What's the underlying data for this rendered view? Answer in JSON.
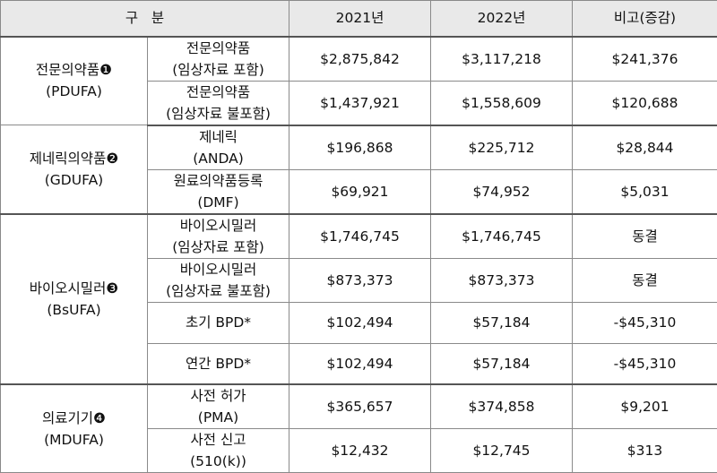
{
  "header": {
    "category": "구   분",
    "year1": "2021년",
    "year2": "2022년",
    "diff": "비고(증감)"
  },
  "groups": [
    {
      "name": "전문의약품❶",
      "abbr": "(PDUFA)",
      "rows": [
        {
          "line1": "전문의약품",
          "line2": "(임상자료 포함)",
          "v2021": "$2,875,842",
          "v2022": "$3,117,218",
          "diff": "$241,376"
        },
        {
          "line1": "전문의약품",
          "line2": "(임상자료 불포함)",
          "v2021": "$1,437,921",
          "v2022": "$1,558,609",
          "diff": "$120,688"
        }
      ]
    },
    {
      "name": "제네릭의약품❷",
      "abbr": "(GDUFA)",
      "rows": [
        {
          "line1": "제네릭",
          "line2": "(ANDA)",
          "v2021": "$196,868",
          "v2022": "$225,712",
          "diff": "$28,844"
        },
        {
          "line1": "원료의약품등록",
          "line2": "(DMF)",
          "v2021": "$69,921",
          "v2022": "$74,952",
          "diff": "$5,031"
        }
      ]
    },
    {
      "name": "바이오시밀러❸",
      "abbr": "(BsUFA)",
      "rows": [
        {
          "line1": "바이오시밀러",
          "line2": "(임상자료 포함)",
          "v2021": "$1,746,745",
          "v2022": "$1,746,745",
          "diff": "동결"
        },
        {
          "line1": "바이오시밀러",
          "line2": "(임상자료 불포함)",
          "v2021": "$873,373",
          "v2022": "$873,373",
          "diff": "동결"
        },
        {
          "line1": "초기 BPD*",
          "line2": "",
          "v2021": "$102,494",
          "v2022": "$57,184",
          "diff": "-$45,310"
        },
        {
          "line1": "연간 BPD*",
          "line2": "",
          "v2021": "$102,494",
          "v2022": "$57,184",
          "diff": "-$45,310"
        }
      ]
    },
    {
      "name": "의료기기❹",
      "abbr": "(MDUFA)",
      "rows": [
        {
          "line1": "사전 허가",
          "line2": "(PMA)",
          "v2021": "$365,657",
          "v2022": "$374,858",
          "diff": "$9,201"
        },
        {
          "line1": "사전 신고",
          "line2": "(510(k))",
          "v2021": "$12,432",
          "v2022": "$12,745",
          "diff": "$313"
        }
      ]
    }
  ]
}
